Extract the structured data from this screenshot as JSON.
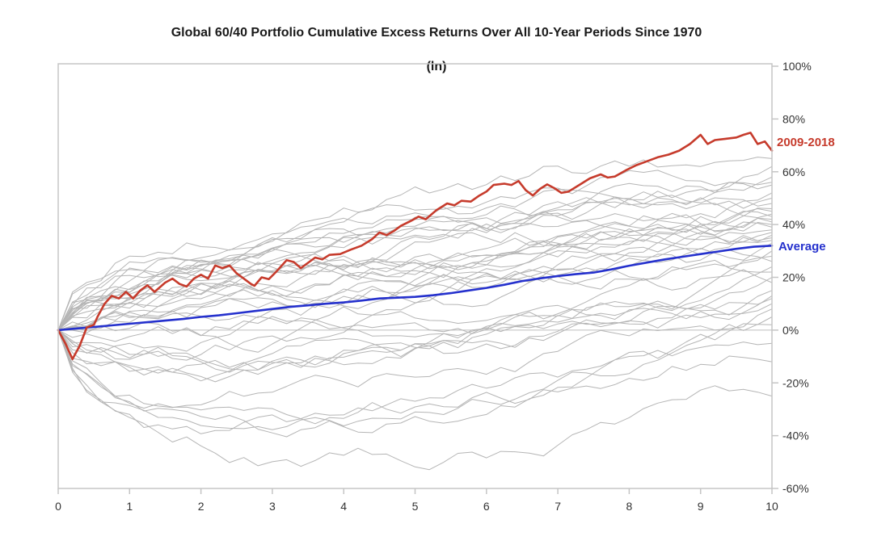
{
  "title": {
    "line1": "Global 60/40 Portfolio Cumulative Excess Returns Over All 10-Year Periods Since 1970",
    "line2": "(ln)"
  },
  "colors": {
    "highlight_red": "#c63b2c",
    "average_blue": "#2531cd",
    "background_gray": "#b5b5b5",
    "frame_gray": "#c5c5c5",
    "zero_line_gray": "#bdbdbd",
    "tick_text": "#333333",
    "title_text": "#1a1a1a"
  },
  "chart_data": {
    "type": "line",
    "title": "Global 60/40 Portfolio Cumulative Excess Returns Over All 10-Year Periods Since 1970 (ln)",
    "xlabel": "",
    "ylabel": "",
    "x_range": [
      0,
      10
    ],
    "y_range_pct": [
      -60,
      100
    ],
    "x_tick_labels": [
      "0",
      "1",
      "2",
      "3",
      "4",
      "5",
      "6",
      "7",
      "8",
      "9",
      "10"
    ],
    "y_tick_labels": [
      "100%",
      "80%",
      "60%",
      "40%",
      "20%",
      "0%",
      "-20%",
      "-40%",
      "-60%"
    ],
    "y_tick_values": [
      100,
      80,
      60,
      40,
      20,
      0,
      -20,
      -40,
      -60
    ],
    "grid": "zero-line-only",
    "legend_position": "right-edge-inline",
    "series": [
      {
        "name": "2009-2018",
        "label": "2009-2018",
        "color": "#c63b2c",
        "width": 2.6,
        "points": [
          [
            0,
            0
          ],
          [
            0.1,
            -5
          ],
          [
            0.2,
            -11
          ],
          [
            0.3,
            -6
          ],
          [
            0.4,
            1
          ],
          [
            0.5,
            2
          ],
          [
            0.55,
            5
          ],
          [
            0.65,
            10
          ],
          [
            0.75,
            13
          ],
          [
            0.85,
            12
          ],
          [
            0.95,
            14.5
          ],
          [
            1.05,
            12
          ],
          [
            1.15,
            15
          ],
          [
            1.25,
            17
          ],
          [
            1.35,
            14.5
          ],
          [
            1.5,
            18
          ],
          [
            1.6,
            19.5
          ],
          [
            1.7,
            17.5
          ],
          [
            1.8,
            16.5
          ],
          [
            1.9,
            19.5
          ],
          [
            2.0,
            21
          ],
          [
            2.1,
            19.5
          ],
          [
            2.2,
            24.5
          ],
          [
            2.3,
            23.5
          ],
          [
            2.4,
            24.5
          ],
          [
            2.5,
            21.5
          ],
          [
            2.6,
            19.5
          ],
          [
            2.7,
            17.5
          ],
          [
            2.75,
            16.8
          ],
          [
            2.85,
            20
          ],
          [
            2.95,
            19.3
          ],
          [
            3.05,
            22
          ],
          [
            3.2,
            26.5
          ],
          [
            3.3,
            25.8
          ],
          [
            3.4,
            23.5
          ],
          [
            3.5,
            25.5
          ],
          [
            3.6,
            27.5
          ],
          [
            3.7,
            26.8
          ],
          [
            3.8,
            28.5
          ],
          [
            3.95,
            28.8
          ],
          [
            4.1,
            30.5
          ],
          [
            4.25,
            32
          ],
          [
            4.4,
            34.5
          ],
          [
            4.5,
            37
          ],
          [
            4.6,
            36
          ],
          [
            4.7,
            37.5
          ],
          [
            4.8,
            39.5
          ],
          [
            4.95,
            41.5
          ],
          [
            5.05,
            43
          ],
          [
            5.15,
            42
          ],
          [
            5.3,
            45.5
          ],
          [
            5.45,
            48
          ],
          [
            5.55,
            47.3
          ],
          [
            5.65,
            49
          ],
          [
            5.78,
            48.7
          ],
          [
            5.9,
            51
          ],
          [
            6.0,
            52.5
          ],
          [
            6.1,
            55
          ],
          [
            6.25,
            55.5
          ],
          [
            6.35,
            55
          ],
          [
            6.45,
            56.5
          ],
          [
            6.55,
            53
          ],
          [
            6.65,
            51
          ],
          [
            6.75,
            53.5
          ],
          [
            6.85,
            55.2
          ],
          [
            6.95,
            53.8
          ],
          [
            7.05,
            52
          ],
          [
            7.15,
            52.5
          ],
          [
            7.3,
            55
          ],
          [
            7.45,
            57.5
          ],
          [
            7.6,
            59
          ],
          [
            7.7,
            57.8
          ],
          [
            7.8,
            58.2
          ],
          [
            7.95,
            60.5
          ],
          [
            8.1,
            62.5
          ],
          [
            8.25,
            64
          ],
          [
            8.4,
            65.5
          ],
          [
            8.55,
            66.5
          ],
          [
            8.7,
            68
          ],
          [
            8.85,
            70.5
          ],
          [
            9.0,
            74
          ],
          [
            9.1,
            70.5
          ],
          [
            9.2,
            72
          ],
          [
            9.35,
            72.5
          ],
          [
            9.5,
            73
          ],
          [
            9.6,
            74
          ],
          [
            9.7,
            74.8
          ],
          [
            9.8,
            70.5
          ],
          [
            9.9,
            71.5
          ],
          [
            10,
            68
          ]
        ]
      },
      {
        "name": "Average",
        "label": "Average",
        "color": "#2531cd",
        "width": 2.6,
        "points": [
          [
            0,
            0
          ],
          [
            0.25,
            0.6
          ],
          [
            0.5,
            1.2
          ],
          [
            0.75,
            1.8
          ],
          [
            1,
            2.4
          ],
          [
            1.25,
            3
          ],
          [
            1.5,
            3.6
          ],
          [
            1.75,
            4.2
          ],
          [
            2,
            5
          ],
          [
            2.25,
            5.6
          ],
          [
            2.5,
            6.4
          ],
          [
            2.75,
            7.2
          ],
          [
            3,
            8
          ],
          [
            3.25,
            8.8
          ],
          [
            3.5,
            9.4
          ],
          [
            3.75,
            10
          ],
          [
            4,
            10.5
          ],
          [
            4.25,
            11.2
          ],
          [
            4.5,
            12
          ],
          [
            4.75,
            12.3
          ],
          [
            5,
            12.6
          ],
          [
            5.25,
            13.2
          ],
          [
            5.5,
            14
          ],
          [
            5.75,
            15
          ],
          [
            6,
            16
          ],
          [
            6.25,
            17.2
          ],
          [
            6.5,
            18.6
          ],
          [
            6.75,
            19.6
          ],
          [
            7,
            20.5
          ],
          [
            7.25,
            21.2
          ],
          [
            7.5,
            21.8
          ],
          [
            7.75,
            23
          ],
          [
            8,
            24.4
          ],
          [
            8.25,
            25.6
          ],
          [
            8.5,
            26.8
          ],
          [
            8.75,
            27.8
          ],
          [
            9,
            28.8
          ],
          [
            9.25,
            29.8
          ],
          [
            9.5,
            30.8
          ],
          [
            9.75,
            31.6
          ],
          [
            10,
            32
          ]
        ]
      }
    ],
    "background_periods": {
      "description": "All other 10-year periods since 1970 (gray lines); each starts at 0%; end = cumulative excess return at year 10, mid = approximate mid-period deviation",
      "color": "#b5b5b5",
      "width": 1,
      "count": 39,
      "lines": [
        {
          "end": 65,
          "mid": 25,
          "seed": 1
        },
        {
          "end": 62,
          "mid": 18,
          "seed": 2
        },
        {
          "end": 58,
          "mid": 28,
          "seed": 3
        },
        {
          "end": 56,
          "mid": 12,
          "seed": 4
        },
        {
          "end": 55,
          "mid": 20,
          "seed": 5
        },
        {
          "end": 52,
          "mid": 8,
          "seed": 6
        },
        {
          "end": 50,
          "mid": 22,
          "seed": 7
        },
        {
          "end": 48,
          "mid": 15,
          "seed": 8
        },
        {
          "end": 46,
          "mid": 5,
          "seed": 9
        },
        {
          "end": 45,
          "mid": 18,
          "seed": 10
        },
        {
          "end": 44,
          "mid": 10,
          "seed": 11
        },
        {
          "end": 43,
          "mid": 2,
          "seed": 12
        },
        {
          "end": 42,
          "mid": 14,
          "seed": 13
        },
        {
          "end": 41,
          "mid": 6,
          "seed": 14
        },
        {
          "end": 40,
          "mid": 16,
          "seed": 15
        },
        {
          "end": 39,
          "mid": 0,
          "seed": 16
        },
        {
          "end": 38,
          "mid": 9,
          "seed": 17
        },
        {
          "end": 37,
          "mid": 12,
          "seed": 18
        },
        {
          "end": 36,
          "mid": 4,
          "seed": 19
        },
        {
          "end": 35,
          "mid": 14,
          "seed": 20
        },
        {
          "end": 34,
          "mid": -2,
          "seed": 21
        },
        {
          "end": 33,
          "mid": 8,
          "seed": 22
        },
        {
          "end": 30,
          "mid": 3,
          "seed": 23
        },
        {
          "end": 28,
          "mid": -6,
          "seed": 24
        },
        {
          "end": 26,
          "mid": 6,
          "seed": 25
        },
        {
          "end": 24,
          "mid": -10,
          "seed": 26
        },
        {
          "end": 22,
          "mid": 0,
          "seed": 27
        },
        {
          "end": 20,
          "mid": -14,
          "seed": 28
        },
        {
          "end": 18,
          "mid": -4,
          "seed": 29
        },
        {
          "end": 15,
          "mid": -18,
          "seed": 30
        },
        {
          "end": 13,
          "mid": -8,
          "seed": 31
        },
        {
          "end": 12,
          "mid": -22,
          "seed": 32
        },
        {
          "end": 10,
          "mid": -12,
          "seed": 33
        },
        {
          "end": 8,
          "mid": -28,
          "seed": 34
        },
        {
          "end": 5,
          "mid": -20,
          "seed": 35
        },
        {
          "end": 2,
          "mid": -30,
          "seed": 36
        },
        {
          "end": -5,
          "mid": -25,
          "seed": 37
        },
        {
          "end": -12,
          "mid": -35,
          "seed": 38
        },
        {
          "end": -25,
          "mid": -40,
          "seed": 39
        }
      ]
    }
  }
}
